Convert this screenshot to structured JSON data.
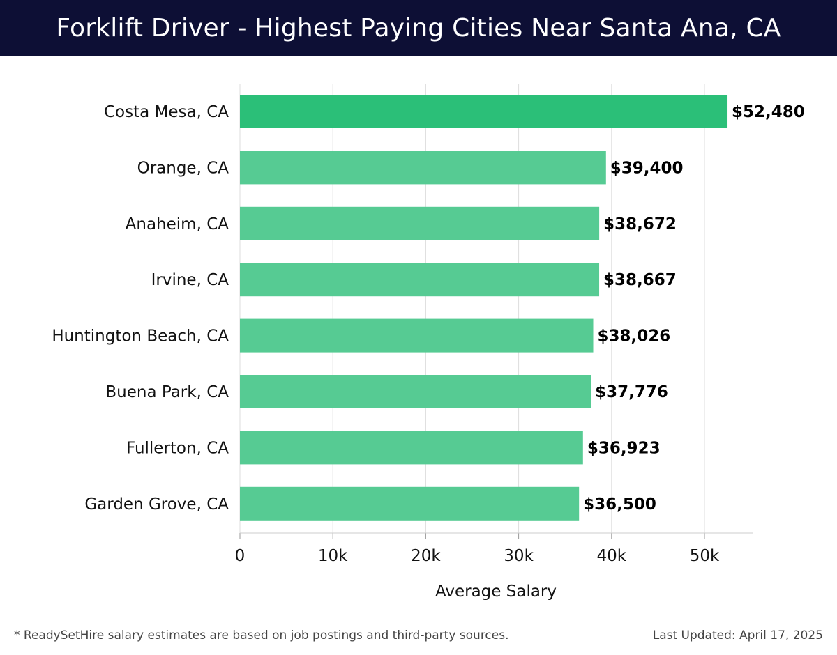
{
  "header": {
    "title": "Forklift Driver - Highest Paying Cities Near Santa Ana, CA"
  },
  "chart_data": {
    "type": "bar",
    "orientation": "horizontal",
    "title": "Forklift Driver - Highest Paying Cities Near Santa Ana, CA",
    "xlabel": "Average Salary",
    "ylabel": "",
    "xlim": [
      0,
      55000
    ],
    "xticks": [
      0,
      10000,
      20000,
      30000,
      40000,
      50000
    ],
    "xtick_labels": [
      "0",
      "10k",
      "20k",
      "30k",
      "40k",
      "50k"
    ],
    "grid": true,
    "categories": [
      "Costa Mesa, CA",
      "Orange, CA",
      "Anaheim, CA",
      "Irvine, CA",
      "Huntington Beach, CA",
      "Buena Park, CA",
      "Fullerton, CA",
      "Garden Grove, CA"
    ],
    "values": [
      52480,
      39400,
      38672,
      38667,
      38026,
      37776,
      36923,
      36500
    ],
    "value_labels": [
      "$52,480",
      "$39,400",
      "$38,672",
      "$38,667",
      "$38,026",
      "$37,776",
      "$36,923",
      "$36,500"
    ],
    "colors": {
      "highlight": "#2bbf78",
      "default": "#56cb93",
      "grid": "#dddddd",
      "axis": "#cccccc"
    }
  },
  "footer": {
    "note": "* ReadySetHire salary estimates are based on job postings and third-party sources.",
    "updated": "Last Updated: April 17, 2025"
  }
}
